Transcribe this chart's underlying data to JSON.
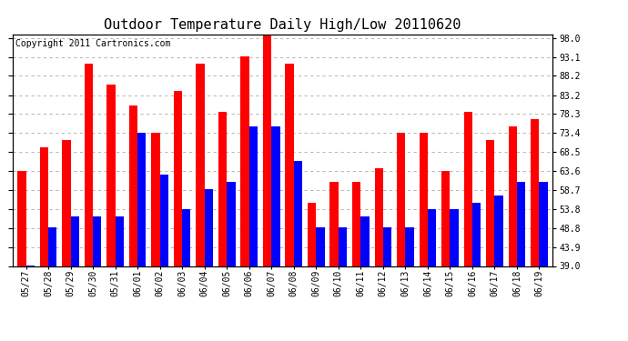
{
  "title": "Outdoor Temperature Daily High/Low 20110620",
  "copyright": "Copyright 2011 Cartronics.com",
  "dates": [
    "05/27",
    "05/28",
    "05/29",
    "05/30",
    "05/31",
    "06/01",
    "06/02",
    "06/03",
    "06/04",
    "06/05",
    "06/06",
    "06/07",
    "06/08",
    "06/09",
    "06/10",
    "06/11",
    "06/12",
    "06/13",
    "06/14",
    "06/15",
    "06/16",
    "06/17",
    "06/18",
    "06/19"
  ],
  "highs": [
    63.6,
    69.8,
    71.6,
    91.4,
    86.0,
    80.6,
    73.4,
    84.2,
    91.4,
    79.0,
    93.2,
    98.6,
    91.4,
    55.4,
    60.8,
    60.8,
    64.4,
    73.4,
    73.4,
    63.6,
    78.8,
    71.6,
    75.2,
    77.0
  ],
  "lows": [
    39.2,
    49.0,
    51.8,
    51.8,
    51.8,
    73.4,
    62.6,
    53.6,
    59.0,
    60.8,
    75.2,
    75.2,
    66.2,
    49.0,
    49.0,
    51.8,
    49.0,
    49.0,
    53.8,
    53.8,
    55.4,
    57.2,
    60.8,
    60.8
  ],
  "high_color": "#ff0000",
  "low_color": "#0000ff",
  "bg_color": "#ffffff",
  "grid_color": "#aaaaaa",
  "ylim_min": 39.0,
  "ylim_max": 99.0,
  "yticks": [
    39.0,
    43.9,
    48.8,
    53.8,
    58.7,
    63.6,
    68.5,
    73.4,
    78.3,
    83.2,
    88.2,
    93.1,
    98.0
  ],
  "title_fontsize": 11,
  "copyright_fontsize": 7
}
